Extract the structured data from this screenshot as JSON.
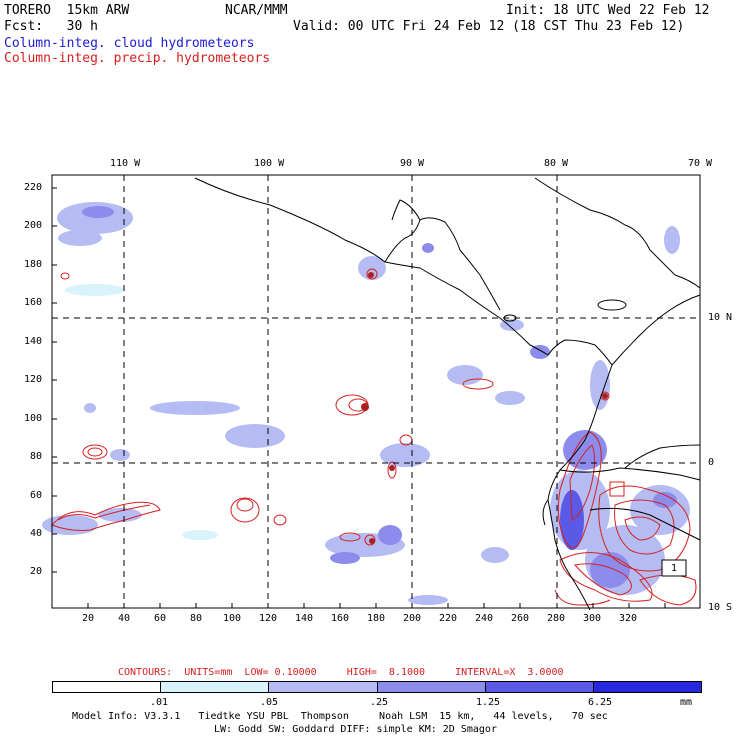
{
  "header": {
    "model": "TORERO  15km ARW",
    "org": "NCAR/MMM",
    "init": "Init: 18 UTC Wed 22 Feb 12",
    "fcst": "Fcst:   30 h",
    "valid": "Valid: 00 UTC Fri 24 Feb 12 (18 CST Thu 23 Feb 12)",
    "field1": "Column-integ. cloud hydrometeors",
    "field2": "Column-integ. precip. hydrometeors"
  },
  "colors": {
    "field1": "#1c1cd6",
    "field2": "#d62020",
    "coast": "#000000"
  },
  "map": {
    "lon_labels": [
      "110 W",
      "100 W",
      "90 W",
      "80 W",
      "70 W"
    ],
    "lat_labels": [
      "10 N",
      "0",
      "10 S"
    ],
    "x_ticks": [
      "20",
      "40",
      "60",
      "80",
      "100",
      "120",
      "140",
      "160",
      "180",
      "200",
      "220",
      "240",
      "260",
      "280",
      "300",
      "320"
    ],
    "y_ticks": [
      "20",
      "40",
      "60",
      "80",
      "100",
      "120",
      "140",
      "160",
      "180",
      "200",
      "220"
    ],
    "contour_label_min": "1"
  },
  "contours_info": {
    "text": "CONTOURS:  UNITS=mm  LOW= 0.10000     HIGH=  8.1000     INTERVAL=X  3.0000"
  },
  "colorbar": {
    "labels": [
      ".01",
      ".05",
      ".25",
      "1.25",
      "6.25"
    ],
    "unit": "mm",
    "colors": [
      "#ffffff",
      "#d8f3fb",
      "#b4bcf3",
      "#8c8cec",
      "#5a5ae6",
      "#2828dd"
    ]
  },
  "footer": {
    "line1": "Model Info: V3.3.1   Tiedtke YSU PBL  Thompson     Noah LSM  15 km,   44 levels,   70 sec",
    "line2": "LW: Godd SW: Goddard DIFF: simple KM: 2D Smagor"
  }
}
